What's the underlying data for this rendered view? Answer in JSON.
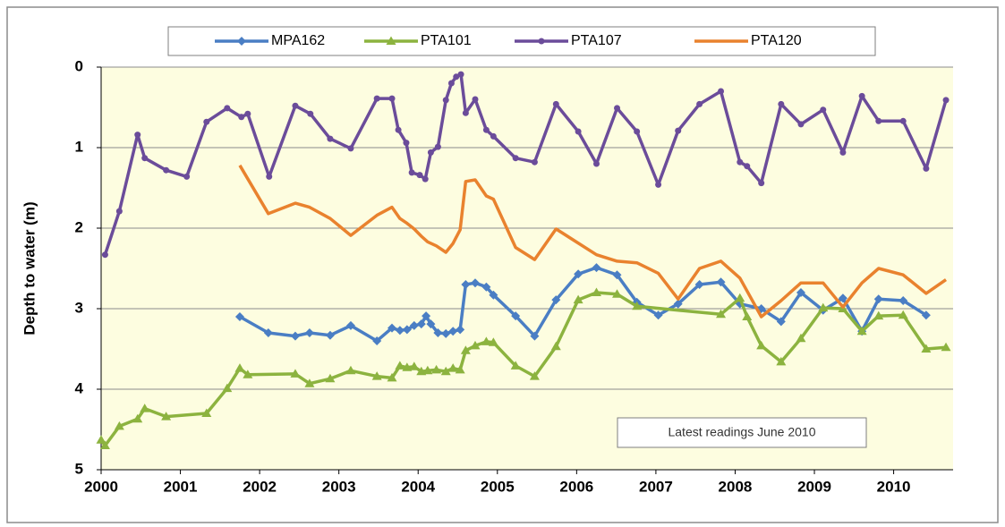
{
  "chart_data": {
    "type": "line",
    "y_label": "Depth to water (m)",
    "annotation": "Latest readings June 2010",
    "xlim": [
      2000,
      2010.75
    ],
    "xticks": [
      2000,
      2001,
      2002,
      2003,
      2004,
      2005,
      2006,
      2007,
      2008,
      2009,
      2010
    ],
    "ylim": [
      0,
      5
    ],
    "yticks": [
      0,
      1,
      2,
      3,
      4,
      5
    ],
    "y_inverted": true,
    "grid": true,
    "legend": "top",
    "series": [
      {
        "name": "MPA162",
        "color": "#4a7ec4",
        "marker": "diamond",
        "x": [
          2001.75,
          2002.11,
          2002.45,
          2002.63,
          2002.89,
          2003.15,
          2003.48,
          2003.67,
          2003.77,
          2003.86,
          2003.95,
          2004.04,
          2004.1,
          2004.16,
          2004.25,
          2004.35,
          2004.44,
          2004.53,
          2004.6,
          2004.72,
          2004.86,
          2004.95,
          2005.23,
          2005.47,
          2005.74,
          2006.02,
          2006.25,
          2006.51,
          2006.76,
          2007.03,
          2007.28,
          2007.55,
          2007.82,
          2008.06,
          2008.33,
          2008.58,
          2008.83,
          2009.11,
          2009.36,
          2009.6,
          2009.81,
          2010.12,
          2010.41
        ],
        "values": [
          3.1,
          3.3,
          3.34,
          3.3,
          3.33,
          3.21,
          3.4,
          3.24,
          3.27,
          3.26,
          3.21,
          3.19,
          3.09,
          3.19,
          3.3,
          3.31,
          3.28,
          3.26,
          2.7,
          2.68,
          2.73,
          2.83,
          3.09,
          3.34,
          2.89,
          2.57,
          2.49,
          2.58,
          2.92,
          3.08,
          2.94,
          2.7,
          2.67,
          2.94,
          3.0,
          3.16,
          2.8,
          3.02,
          2.87,
          3.28,
          2.88,
          2.9,
          3.08
        ]
      },
      {
        "name": "PTA101",
        "color": "#8cb33f",
        "marker": "triangle",
        "x": [
          2000.0,
          2000.05,
          2000.23,
          2000.46,
          2000.55,
          2000.82,
          2001.33,
          2001.59,
          2001.75,
          2001.85,
          2002.45,
          2002.63,
          2002.89,
          2003.15,
          2003.48,
          2003.67,
          2003.77,
          2003.86,
          2003.95,
          2004.04,
          2004.12,
          2004.23,
          2004.35,
          2004.44,
          2004.53,
          2004.6,
          2004.72,
          2004.86,
          2004.95,
          2005.23,
          2005.47,
          2005.74,
          2006.02,
          2006.25,
          2006.51,
          2006.76,
          2007.82,
          2008.06,
          2008.15,
          2008.33,
          2008.58,
          2008.83,
          2009.11,
          2009.36,
          2009.6,
          2009.81,
          2010.12,
          2010.41,
          2010.66
        ],
        "values": [
          4.63,
          4.7,
          4.46,
          4.37,
          4.24,
          4.34,
          4.3,
          3.99,
          3.74,
          3.82,
          3.81,
          3.93,
          3.87,
          3.77,
          3.84,
          3.86,
          3.71,
          3.73,
          3.72,
          3.78,
          3.77,
          3.76,
          3.78,
          3.74,
          3.76,
          3.52,
          3.46,
          3.41,
          3.42,
          3.71,
          3.84,
          3.47,
          2.89,
          2.8,
          2.82,
          2.97,
          3.07,
          2.87,
          3.1,
          3.46,
          3.66,
          3.37,
          2.99,
          3.0,
          3.28,
          3.09,
          3.08,
          3.5,
          3.48
        ]
      },
      {
        "name": "PTA107",
        "color": "#6b4c9a",
        "marker": "circle",
        "x": [
          2000.05,
          2000.23,
          2000.46,
          2000.55,
          2000.82,
          2001.08,
          2001.33,
          2001.59,
          2001.77,
          2001.85,
          2002.12,
          2002.45,
          2002.64,
          2002.89,
          2003.15,
          2003.48,
          2003.67,
          2003.75,
          2003.85,
          2003.92,
          2004.02,
          2004.09,
          2004.16,
          2004.25,
          2004.35,
          2004.42,
          2004.48,
          2004.54,
          2004.6,
          2004.72,
          2004.86,
          2004.95,
          2005.23,
          2005.47,
          2005.74,
          2006.02,
          2006.25,
          2006.51,
          2006.76,
          2007.03,
          2007.28,
          2007.55,
          2007.82,
          2008.06,
          2008.15,
          2008.33,
          2008.58,
          2008.83,
          2009.11,
          2009.36,
          2009.6,
          2009.81,
          2010.12,
          2010.41,
          2010.66
        ],
        "values": [
          2.33,
          1.79,
          0.84,
          1.13,
          1.28,
          1.36,
          0.68,
          0.51,
          0.62,
          0.58,
          1.36,
          0.48,
          0.58,
          0.89,
          1.01,
          0.39,
          0.39,
          0.78,
          0.94,
          1.31,
          1.34,
          1.39,
          1.06,
          0.99,
          0.41,
          0.2,
          0.12,
          0.09,
          0.57,
          0.4,
          0.78,
          0.86,
          1.13,
          1.18,
          0.46,
          0.8,
          1.2,
          0.51,
          0.8,
          1.46,
          0.79,
          0.46,
          0.3,
          1.18,
          1.23,
          1.44,
          0.46,
          0.71,
          0.53,
          1.06,
          0.36,
          0.67,
          0.67,
          1.26,
          0.41
        ]
      },
      {
        "name": "PTA120",
        "color": "#e9822e",
        "marker": "none",
        "x": [
          2001.75,
          2002.11,
          2002.45,
          2002.63,
          2002.89,
          2003.15,
          2003.48,
          2003.67,
          2003.77,
          2003.86,
          2003.95,
          2004.04,
          2004.12,
          2004.23,
          2004.35,
          2004.44,
          2004.53,
          2004.6,
          2004.72,
          2004.86,
          2004.95,
          2005.23,
          2005.47,
          2005.74,
          2006.25,
          2006.51,
          2006.76,
          2007.03,
          2007.28,
          2007.55,
          2007.82,
          2008.06,
          2008.33,
          2008.58,
          2008.83,
          2009.11,
          2009.36,
          2009.6,
          2009.81,
          2010.12,
          2010.41,
          2010.66
        ],
        "values": [
          1.22,
          1.82,
          1.69,
          1.74,
          1.88,
          2.09,
          1.84,
          1.74,
          1.88,
          1.94,
          2.01,
          2.1,
          2.17,
          2.22,
          2.3,
          2.19,
          2.02,
          1.42,
          1.4,
          1.6,
          1.64,
          2.24,
          2.39,
          2.01,
          2.33,
          2.41,
          2.43,
          2.56,
          2.88,
          2.5,
          2.41,
          2.62,
          3.1,
          2.9,
          2.68,
          2.68,
          2.98,
          2.68,
          2.5,
          2.58,
          2.81,
          2.64
        ]
      }
    ]
  }
}
